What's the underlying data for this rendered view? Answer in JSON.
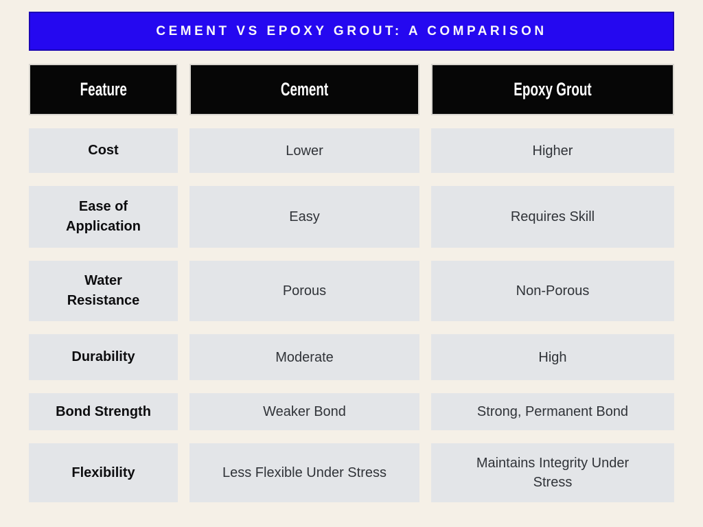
{
  "colors": {
    "page_background": "#f5f0e7",
    "title_background": "#2508f0",
    "title_border": "#1b06b4",
    "title_text": "#f8f6fb",
    "header_background": "#060606",
    "header_text": "#fdfdfd",
    "cell_background": "#e3e5e8",
    "feature_text": "#0d0d0f",
    "value_text": "#303338"
  },
  "title": "CEMENT VS EPOXY GROUT: A COMPARISON",
  "chart_data": {
    "type": "table",
    "title": "CEMENT VS EPOXY GROUT: A COMPARISON",
    "columns": [
      "Feature",
      "Cement",
      "Epoxy Grout"
    ],
    "rows": [
      [
        "Cost",
        "Lower",
        "Higher"
      ],
      [
        "Ease of Application",
        "Easy",
        "Requires Skill"
      ],
      [
        "Water Resistance",
        "Porous",
        "Non-Porous"
      ],
      [
        "Durability",
        "Moderate",
        "High"
      ],
      [
        "Bond Strength",
        "Weaker Bond",
        "Strong, Permanent Bond"
      ],
      [
        "Flexibility",
        "Less Flexible Under Stress",
        "Maintains Integrity Under Stress"
      ]
    ],
    "layout": {
      "legend": "none",
      "grid": "off",
      "style": "infographic comparison table, 3 columns, black header cells, light gray body cells on cream background, blue title banner"
    }
  }
}
